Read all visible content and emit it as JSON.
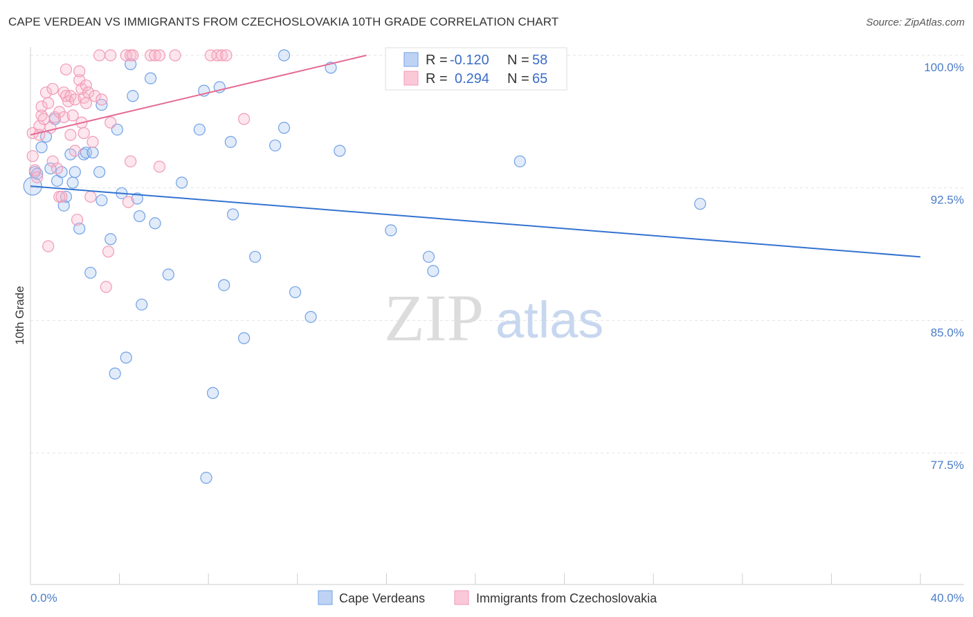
{
  "title": "CAPE VERDEAN VS IMMIGRANTS FROM CZECHOSLOVAKIA 10TH GRADE CORRELATION CHART",
  "source": "Source: ZipAtlas.com",
  "watermark": {
    "zip": "ZIP",
    "atlas": "atlas"
  },
  "legend": {
    "r_label": "R =",
    "n_label": "N =",
    "rows": [
      {
        "r": "-0.120",
        "n": "58",
        "color": "#6fa0e6"
      },
      {
        "r": "0.294",
        "n": "65",
        "color": "#f09ab6"
      }
    ]
  },
  "chart_data": {
    "type": "scatter",
    "title": "CAPE VERDEAN VS IMMIGRANTS FROM CZECHOSLOVAKIA 10TH GRADE CORRELATION CHART",
    "ylabel": "10th Grade",
    "xlabel": "",
    "x_tick_labels": [
      "0.0%",
      "40.0%"
    ],
    "y_tick_labels": [
      "100.0%",
      "92.5%",
      "85.0%",
      "77.5%"
    ],
    "y_ticks": [
      100.0,
      92.5,
      85.0,
      77.5
    ],
    "xlim": [
      0,
      40
    ],
    "ylim": [
      70.5,
      101.0
    ],
    "grid": true,
    "legend_position": "top-center",
    "series": [
      {
        "name": "Cape Verdeans",
        "color": "#6fa0e6",
        "trend": {
          "x": [
            0,
            40
          ],
          "y": [
            92.6,
            88.6
          ]
        },
        "points": [
          [
            0.1,
            92.6
          ],
          [
            0.2,
            93.4
          ],
          [
            0.3,
            93.3
          ],
          [
            0.5,
            94.8
          ],
          [
            0.7,
            95.4
          ],
          [
            0.9,
            93.6
          ],
          [
            1.1,
            96.4
          ],
          [
            1.2,
            92.9
          ],
          [
            1.4,
            93.4
          ],
          [
            1.5,
            91.5
          ],
          [
            1.6,
            92.0
          ],
          [
            1.8,
            94.4
          ],
          [
            1.9,
            92.8
          ],
          [
            2.0,
            93.4
          ],
          [
            2.2,
            90.2
          ],
          [
            2.4,
            94.4
          ],
          [
            2.5,
            94.5
          ],
          [
            2.7,
            87.7
          ],
          [
            2.8,
            94.5
          ],
          [
            3.1,
            93.4
          ],
          [
            3.2,
            91.8
          ],
          [
            3.2,
            97.2
          ],
          [
            3.6,
            89.6
          ],
          [
            3.8,
            82.0
          ],
          [
            3.9,
            95.8
          ],
          [
            4.1,
            92.2
          ],
          [
            4.3,
            82.9
          ],
          [
            4.5,
            99.5
          ],
          [
            4.6,
            97.7
          ],
          [
            4.8,
            91.9
          ],
          [
            4.9,
            90.9
          ],
          [
            5.0,
            85.9
          ],
          [
            5.4,
            98.7
          ],
          [
            5.6,
            90.5
          ],
          [
            6.2,
            87.6
          ],
          [
            6.8,
            92.8
          ],
          [
            7.6,
            95.8
          ],
          [
            7.8,
            98.0
          ],
          [
            7.9,
            76.1
          ],
          [
            8.2,
            80.9
          ],
          [
            8.5,
            98.2
          ],
          [
            8.7,
            87.0
          ],
          [
            9.0,
            95.1
          ],
          [
            9.1,
            91.0
          ],
          [
            9.6,
            84.0
          ],
          [
            10.1,
            88.6
          ],
          [
            11.0,
            94.9
          ],
          [
            11.4,
            95.9
          ],
          [
            11.4,
            100.0
          ],
          [
            11.9,
            86.6
          ],
          [
            12.6,
            85.2
          ],
          [
            13.5,
            99.3
          ],
          [
            13.9,
            94.6
          ],
          [
            16.2,
            90.1
          ],
          [
            17.9,
            88.6
          ],
          [
            18.1,
            87.8
          ],
          [
            22.0,
            94.0
          ],
          [
            30.1,
            91.6
          ]
        ]
      },
      {
        "name": "Immigrants from Czechoslovakia",
        "color": "#f09ab6",
        "trend": {
          "x": [
            0,
            15.1
          ],
          "y": [
            95.5,
            100.0
          ]
        },
        "points": [
          [
            0.1,
            94.3
          ],
          [
            0.1,
            95.6
          ],
          [
            0.2,
            93.5
          ],
          [
            0.3,
            93.1
          ],
          [
            0.4,
            96.0
          ],
          [
            0.4,
            95.5
          ],
          [
            0.5,
            96.6
          ],
          [
            0.5,
            97.1
          ],
          [
            0.6,
            96.4
          ],
          [
            0.7,
            97.9
          ],
          [
            0.8,
            97.3
          ],
          [
            0.8,
            89.2
          ],
          [
            0.9,
            95.9
          ],
          [
            1.0,
            98.1
          ],
          [
            1.0,
            94.0
          ],
          [
            1.1,
            96.5
          ],
          [
            1.2,
            93.6
          ],
          [
            1.3,
            96.8
          ],
          [
            1.3,
            92.0
          ],
          [
            1.4,
            92.0
          ],
          [
            1.5,
            97.9
          ],
          [
            1.5,
            96.5
          ],
          [
            1.6,
            97.7
          ],
          [
            1.6,
            99.2
          ],
          [
            1.7,
            97.4
          ],
          [
            1.8,
            95.5
          ],
          [
            1.8,
            97.7
          ],
          [
            1.9,
            96.6
          ],
          [
            2.0,
            97.5
          ],
          [
            2.0,
            94.6
          ],
          [
            2.1,
            90.7
          ],
          [
            2.2,
            98.6
          ],
          [
            2.2,
            99.1
          ],
          [
            2.3,
            96.2
          ],
          [
            2.3,
            98.1
          ],
          [
            2.4,
            97.6
          ],
          [
            2.4,
            95.6
          ],
          [
            2.5,
            98.3
          ],
          [
            2.5,
            97.3
          ],
          [
            2.6,
            97.9
          ],
          [
            2.7,
            92.0
          ],
          [
            2.8,
            95.1
          ],
          [
            2.9,
            97.7
          ],
          [
            3.1,
            100.0
          ],
          [
            3.2,
            97.5
          ],
          [
            3.4,
            86.9
          ],
          [
            3.5,
            88.9
          ],
          [
            3.6,
            96.2
          ],
          [
            3.6,
            100.0
          ],
          [
            4.3,
            100.0
          ],
          [
            4.4,
            91.7
          ],
          [
            4.5,
            94.0
          ],
          [
            4.5,
            100.0
          ],
          [
            4.6,
            100.0
          ],
          [
            5.4,
            100.0
          ],
          [
            5.6,
            100.0
          ],
          [
            5.8,
            100.0
          ],
          [
            5.8,
            93.7
          ],
          [
            6.5,
            100.0
          ],
          [
            8.1,
            100.0
          ],
          [
            8.4,
            100.0
          ],
          [
            8.6,
            100.0
          ],
          [
            8.8,
            100.0
          ],
          [
            9.6,
            96.4
          ],
          [
            18.3,
            100.0
          ]
        ]
      }
    ]
  }
}
